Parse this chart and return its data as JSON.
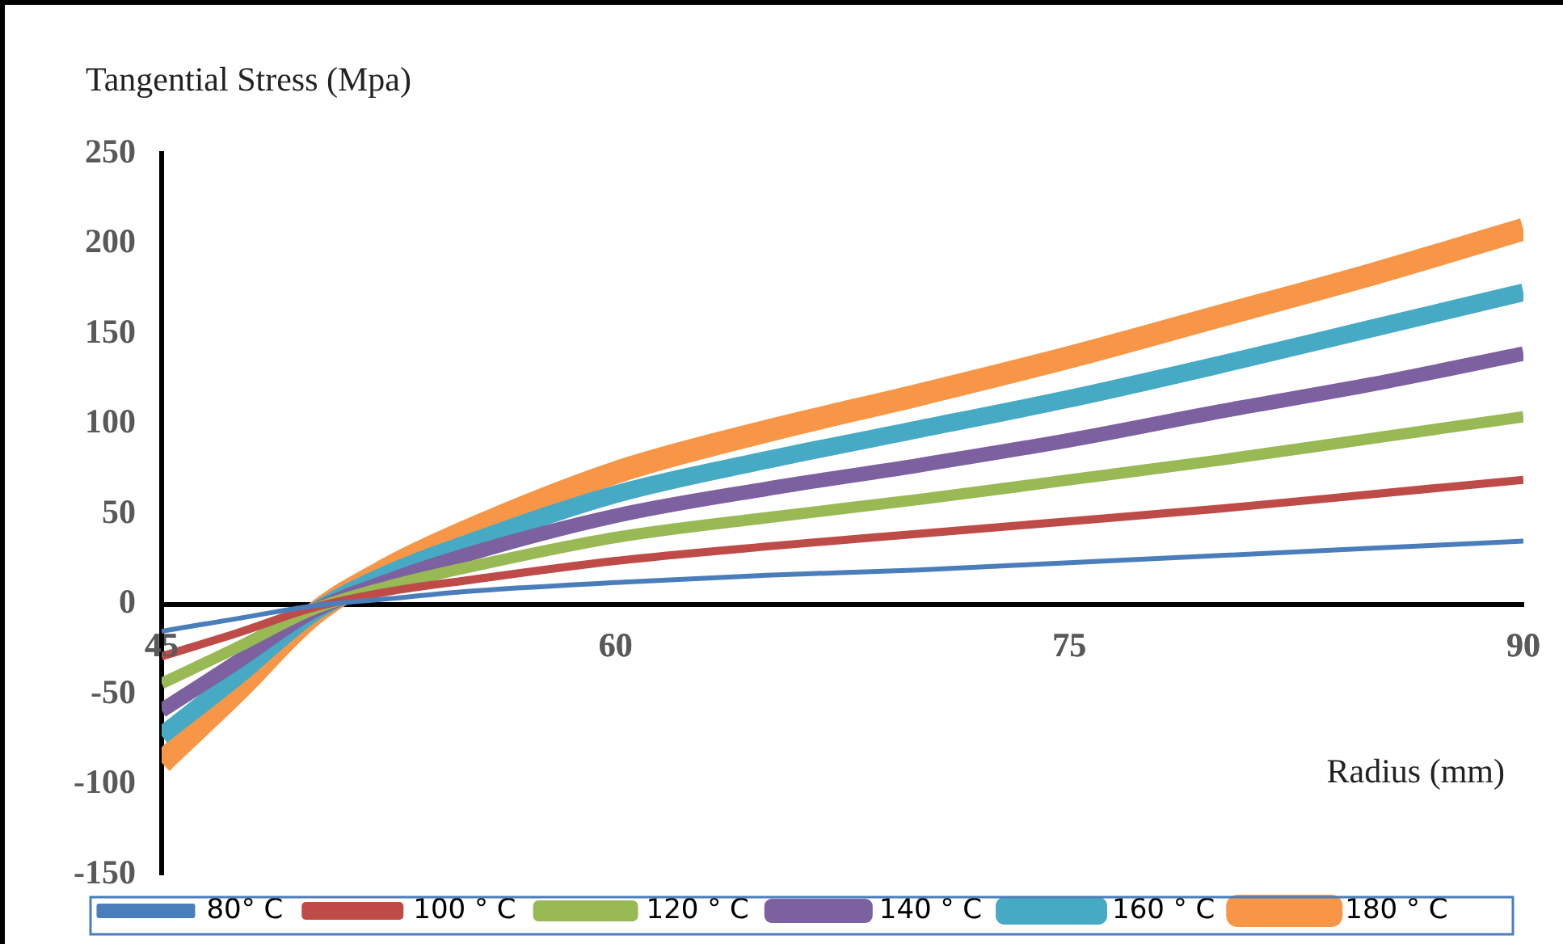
{
  "chart_data": {
    "type": "line",
    "ylabel": "Tangential Stress (Mpa)",
    "xlabel": "Radius (mm)",
    "x": [
      45,
      47.5,
      50,
      52.5,
      55,
      60,
      65,
      70,
      75,
      80,
      85,
      90
    ],
    "xlim": [
      45,
      90
    ],
    "xticks": [
      45,
      60,
      75,
      90
    ],
    "ylim": [
      -150,
      250
    ],
    "yticks": [
      -150,
      -100,
      -50,
      0,
      50,
      100,
      150,
      200,
      250
    ],
    "grid": false,
    "legend": "bottom",
    "marker": "none",
    "line_style": "solid",
    "series": [
      {
        "name": "80° C",
        "color": "#4a7ebb",
        "values": [
          -15,
          -8,
          -1,
          3,
          7,
          12,
          16,
          19,
          23,
          27,
          31,
          35
        ]
      },
      {
        "name": "100 ° C",
        "color": "#be4b48",
        "values": [
          -29,
          -16,
          -2,
          7,
          13,
          24,
          32,
          39,
          46,
          53,
          61,
          69
        ]
      },
      {
        "name": "120 ° C",
        "color": "#98b954",
        "values": [
          -44,
          -24,
          -3,
          10,
          20,
          37,
          48,
          58,
          69,
          80,
          92,
          104
        ]
      },
      {
        "name": "140 ° C",
        "color": "#7d60a0",
        "values": [
          -59,
          -32,
          -4,
          13,
          27,
          49,
          64,
          77,
          91,
          107,
          122,
          139
        ]
      },
      {
        "name": "160 ° C",
        "color": "#46aac5",
        "values": [
          -73,
          -40,
          -5,
          17,
          33,
          61,
          80,
          97,
          114,
          133,
          153,
          173
        ]
      },
      {
        "name": "180 ° C",
        "color": "#f79646",
        "values": [
          -88,
          -48,
          -6,
          20,
          40,
          73,
          96,
          116,
          137,
          160,
          183,
          208
        ]
      }
    ]
  }
}
